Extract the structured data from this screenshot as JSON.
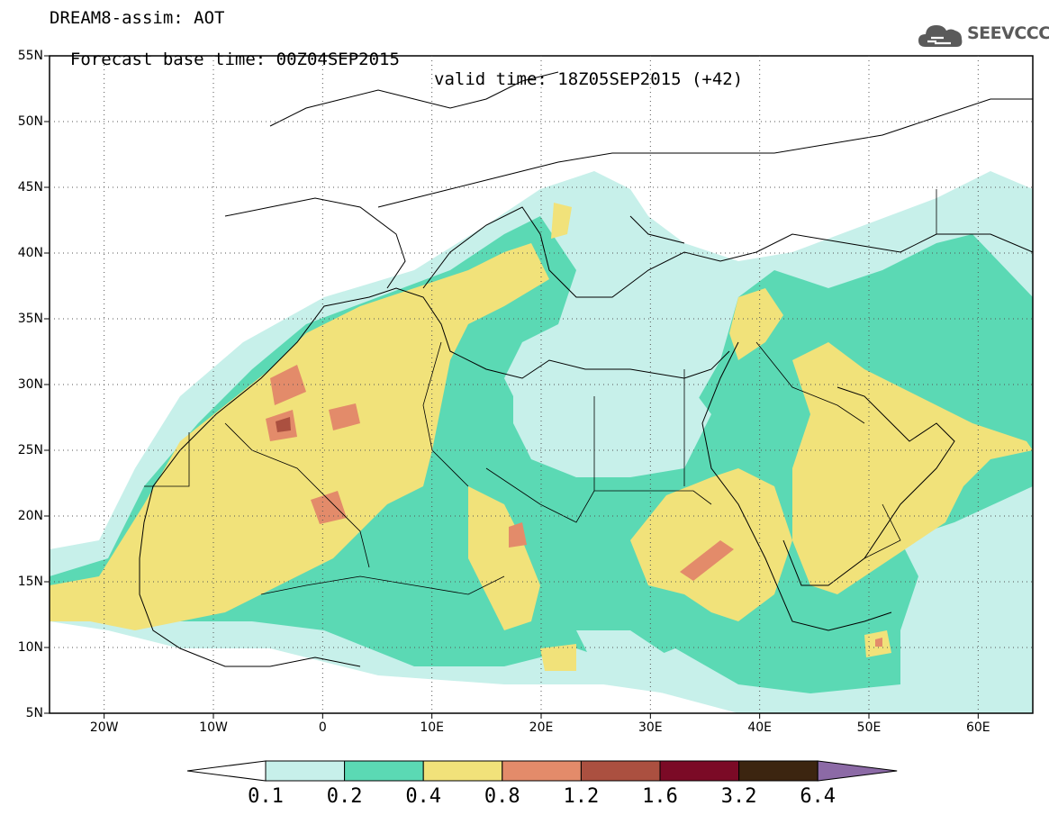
{
  "header": {
    "line1": "DREAM8-assim: AOT",
    "line2": "Forecast base time: 00Z04SEP2015",
    "valid": "valid time: 18Z05SEP2015 (+42)"
  },
  "logo": {
    "text": "SEEVCCC",
    "icon": "cloud-icon"
  },
  "map": {
    "lon_range": [
      -25,
      65
    ],
    "lat_range": [
      5,
      55
    ],
    "lat_labels": [
      "55N",
      "50N",
      "45N",
      "40N",
      "35N",
      "30N",
      "25N",
      "20N",
      "15N",
      "10N",
      "5N"
    ],
    "lon_labels": [
      "20W",
      "10W",
      "0",
      "10E",
      "20E",
      "30E",
      "40E",
      "50E",
      "60E"
    ],
    "gridlines": "dotted"
  },
  "colorbar": {
    "labels": [
      "0.1",
      "0.2",
      "0.4",
      "0.8",
      "1.2",
      "1.6",
      "3.2",
      "6.4"
    ],
    "colors": [
      "#c7f0ea",
      "#5bd9b4",
      "#f1e27a",
      "#e38b6a",
      "#ab5040",
      "#7b0a26",
      "#3c2510",
      "#8c6aa6"
    ]
  }
}
